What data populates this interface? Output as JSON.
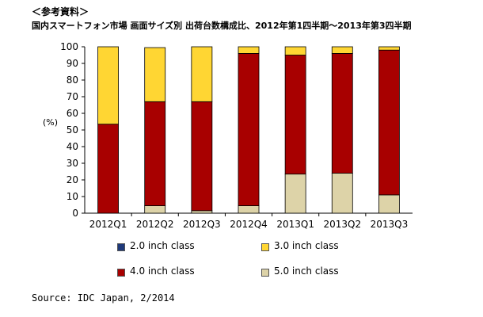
{
  "header": {
    "ref_label": "＜参考資料＞",
    "title": "国内スマートフォン市場 画面サイズ別 出荷台数構成比、2012年第1四半期～2013年第3四半期"
  },
  "source": "Source: IDC Japan, 2/2014",
  "colors": {
    "s1": "#1f3a7a",
    "s2": "#ffd633",
    "s3": "#a80000",
    "s4": "#ddd3a8"
  },
  "chart_data": {
    "type": "bar",
    "stacked": true,
    "ylabel": "(%)",
    "ylim": [
      0,
      100
    ],
    "yticks": [
      0,
      10,
      20,
      30,
      40,
      50,
      60,
      70,
      80,
      90,
      100
    ],
    "categories": [
      "2012Q1",
      "2012Q2",
      "2012Q3",
      "2012Q4",
      "2013Q1",
      "2013Q2",
      "2013Q3"
    ],
    "series": [
      {
        "name": "2.0 inch class",
        "values": [
          0,
          0,
          0,
          0,
          0,
          0,
          0
        ]
      },
      {
        "name": "3.0 inch class",
        "values": [
          46.5,
          32.5,
          33,
          4,
          5,
          4,
          2
        ]
      },
      {
        "name": "4.0 inch class",
        "values": [
          53.5,
          62.5,
          65.5,
          91.5,
          71.5,
          72,
          87
        ]
      },
      {
        "name": "5.0 inch class",
        "values": [
          0,
          4.5,
          1.5,
          4.5,
          23.5,
          24,
          11
        ]
      }
    ],
    "grid": false,
    "legend_position": "bottom"
  }
}
